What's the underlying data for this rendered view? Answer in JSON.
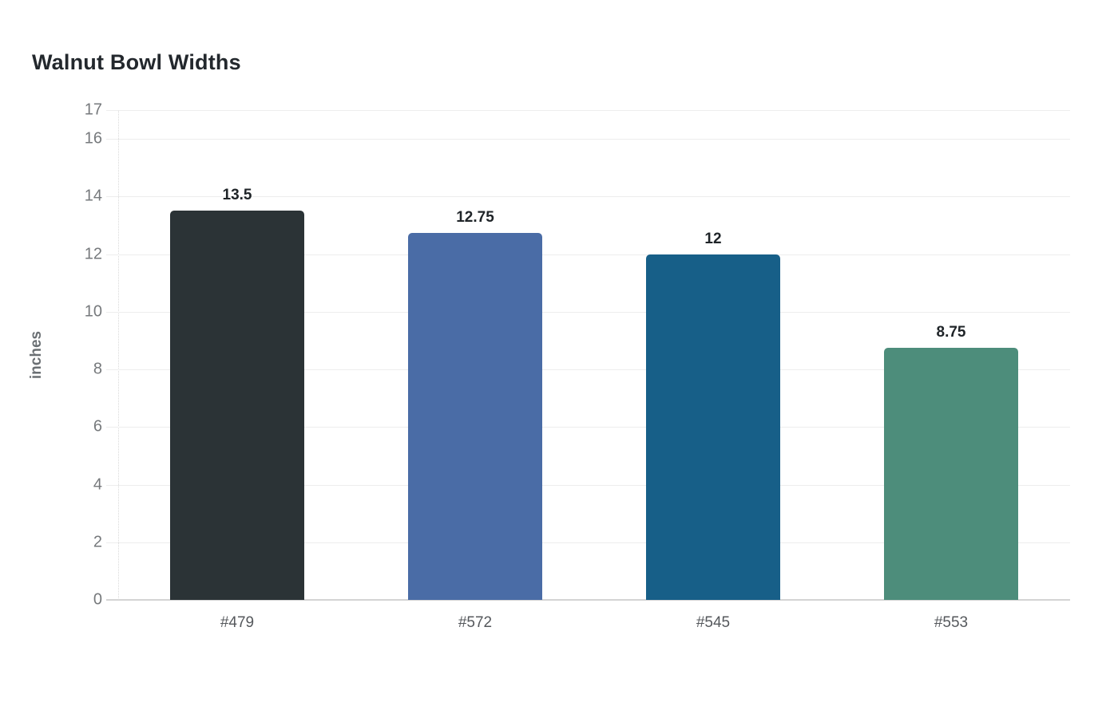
{
  "title": "Walnut Bowl Widths",
  "chart_data": {
    "type": "bar",
    "title": "Walnut Bowl Widths",
    "categories": [
      "#479",
      "#572",
      "#545",
      "#553"
    ],
    "values": [
      13.5,
      12.75,
      12,
      8.75
    ],
    "data_labels": [
      "13.5",
      "12.75",
      "12",
      "8.75"
    ],
    "bar_colors": [
      "#2b3336",
      "#4a6ca6",
      "#175f88",
      "#4d8d7b"
    ],
    "xlabel": "",
    "ylabel": "inches",
    "ylim": [
      0,
      17
    ],
    "yticks": [
      0,
      2,
      4,
      6,
      8,
      10,
      12,
      14,
      16,
      17
    ],
    "grid": true,
    "legend": false,
    "background": "#ffffff",
    "gridline_color": "#ededed",
    "zero_line_color": "#d4d4d4",
    "title_color": "#23282d",
    "tick_label_color": "#76797c",
    "category_label_color": "#55585c",
    "value_label_color": "#1f2428",
    "axis_label_color": "#6a6f73"
  }
}
